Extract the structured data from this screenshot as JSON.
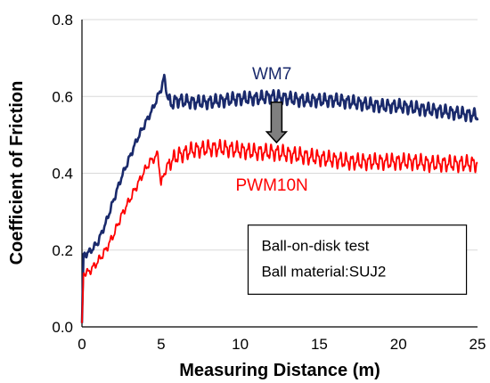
{
  "chart_data": {
    "type": "line",
    "title": "",
    "xlabel": "Measuring Distance (m)",
    "ylabel": "Coefficient of Friction",
    "xlim": [
      0,
      25
    ],
    "ylim": [
      0,
      0.8
    ],
    "x_ticks": [
      "0",
      "5",
      "10",
      "15",
      "20",
      "25"
    ],
    "y_ticks": [
      "0.0",
      "0.2",
      "0.4",
      "0.6",
      "0.8"
    ],
    "grid": "horizontal",
    "series": [
      {
        "name": "WM7",
        "color": "#1a2a6c",
        "x": [
          0,
          0.1,
          0.3,
          0.6,
          1.0,
          1.5,
          2.0,
          2.5,
          3.0,
          3.5,
          4.0,
          4.5,
          4.8,
          5.0,
          5.2,
          5.4,
          5.6,
          6.0,
          7.0,
          8.0,
          9.0,
          10.0,
          11.0,
          12.0,
          13.0,
          14.0,
          15.0,
          16.0,
          17.0,
          18.0,
          19.0,
          20.0,
          21.0,
          22.0,
          23.0,
          24.0,
          25.0
        ],
        "y": [
          0.01,
          0.19,
          0.19,
          0.2,
          0.22,
          0.27,
          0.33,
          0.39,
          0.44,
          0.49,
          0.53,
          0.57,
          0.6,
          0.62,
          0.65,
          0.6,
          0.58,
          0.59,
          0.585,
          0.585,
          0.59,
          0.595,
          0.595,
          0.6,
          0.595,
          0.59,
          0.59,
          0.59,
          0.585,
          0.58,
          0.575,
          0.575,
          0.57,
          0.565,
          0.56,
          0.555,
          0.55
        ],
        "noise": 0.013
      },
      {
        "name": "PWM10N",
        "color": "#ff0000",
        "x": [
          0,
          0.1,
          0.3,
          0.6,
          1.0,
          1.5,
          2.0,
          2.5,
          3.0,
          3.5,
          4.0,
          4.3,
          4.6,
          4.8,
          5.0,
          5.2,
          5.4,
          5.6,
          6.0,
          7.0,
          8.0,
          9.0,
          10.0,
          11.0,
          12.0,
          13.0,
          14.0,
          15.0,
          16.0,
          17.0,
          18.0,
          19.0,
          20.0,
          21.0,
          22.0,
          23.0,
          24.0,
          25.0
        ],
        "y": [
          0.01,
          0.14,
          0.14,
          0.15,
          0.17,
          0.2,
          0.24,
          0.29,
          0.33,
          0.37,
          0.41,
          0.43,
          0.44,
          0.45,
          0.37,
          0.4,
          0.42,
          0.43,
          0.445,
          0.46,
          0.465,
          0.465,
          0.46,
          0.455,
          0.455,
          0.45,
          0.445,
          0.44,
          0.435,
          0.43,
          0.43,
          0.43,
          0.43,
          0.43,
          0.425,
          0.425,
          0.425,
          0.425
        ],
        "noise": 0.016
      }
    ],
    "series_labels": [
      {
        "text": "WM7",
        "color": "#1a2a6c",
        "x": 12.0,
        "y": 0.645
      },
      {
        "text": "PWM10N",
        "color": "#ff0000",
        "x": 12.0,
        "y": 0.355
      }
    ],
    "arrow": {
      "x": 12.3,
      "from": 0.585,
      "to": 0.48,
      "fill": "#7f7f7f"
    },
    "annotation_box": {
      "lines": [
        "Ball-on-disk test",
        "Ball material:SUJ2"
      ],
      "x0": 10.5,
      "x1": 24.3,
      "y_top": 0.265,
      "y_bottom": 0.085
    }
  }
}
